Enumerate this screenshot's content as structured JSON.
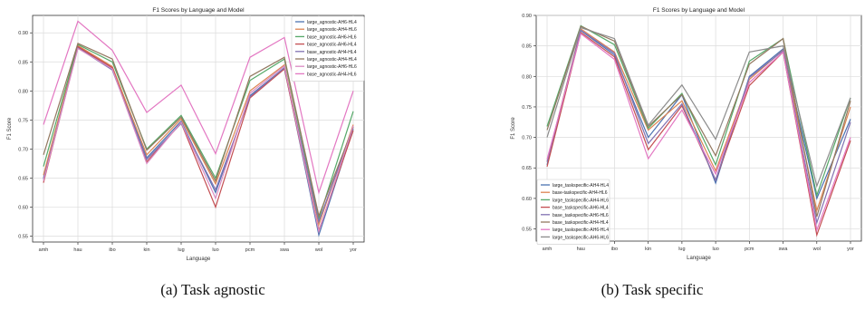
{
  "captions": [
    "(a)  Task agnostic",
    "(b)  Task specific"
  ],
  "chart_data": [
    {
      "type": "line",
      "title": "F1 Scores by Language and Model",
      "xlabel": "Language",
      "ylabel": "F1 Score",
      "categories": [
        "amh",
        "hau",
        "ibo",
        "kin",
        "lug",
        "luo",
        "pcm",
        "swa",
        "wol",
        "yor"
      ],
      "ylim": [
        0.54,
        0.93
      ],
      "yticks": [
        "0.55",
        "0.60",
        "0.65",
        "0.70",
        "0.75",
        "0.80",
        "0.85",
        "0.90"
      ],
      "grid": true,
      "legend_position": "top-right",
      "series": [
        {
          "name": "large_agnostic-AH6-HL4",
          "color": "#4c72b0",
          "values": [
            0.65,
            0.875,
            0.838,
            0.685,
            0.748,
            0.625,
            0.792,
            0.84,
            0.552,
            0.735
          ]
        },
        {
          "name": "large_agnostic-AH4-HL6",
          "color": "#dd8452",
          "values": [
            0.655,
            0.878,
            0.842,
            0.69,
            0.752,
            0.64,
            0.8,
            0.845,
            0.57,
            0.742
          ]
        },
        {
          "name": "base_agnostic-AH6-HL6",
          "color": "#55a868",
          "values": [
            0.67,
            0.88,
            0.85,
            0.7,
            0.758,
            0.65,
            0.818,
            0.855,
            0.58,
            0.765
          ]
        },
        {
          "name": "base_agnostic-AH6-HL4",
          "color": "#c44e52",
          "values": [
            0.642,
            0.876,
            0.84,
            0.678,
            0.745,
            0.6,
            0.788,
            0.838,
            0.56,
            0.732
          ]
        },
        {
          "name": "base_agnostic-AH4-HL4",
          "color": "#8172b2",
          "values": [
            0.648,
            0.874,
            0.836,
            0.682,
            0.744,
            0.63,
            0.79,
            0.84,
            0.575,
            0.738
          ]
        },
        {
          "name": "large_agnostic-AH4-HL4",
          "color": "#937860",
          "values": [
            0.69,
            0.882,
            0.855,
            0.698,
            0.755,
            0.645,
            0.825,
            0.858,
            0.585,
            0.738
          ]
        },
        {
          "name": "large_agnostic-AH6-HL6",
          "color": "#da8bc3",
          "values": [
            0.645,
            0.873,
            0.838,
            0.675,
            0.746,
            0.615,
            0.796,
            0.843,
            0.558,
            0.74
          ]
        },
        {
          "name": "base_agnostic-AH4-HL6",
          "color": "#e377c2",
          "values": [
            0.742,
            0.92,
            0.87,
            0.763,
            0.81,
            0.692,
            0.858,
            0.892,
            0.625,
            0.8
          ]
        }
      ]
    },
    {
      "type": "line",
      "title": "F1 Scores by Language and Model",
      "xlabel": "Language",
      "ylabel": "F1 Score",
      "categories": [
        "amh",
        "hau",
        "ibo",
        "kin",
        "lug",
        "luo",
        "pcm",
        "swa",
        "wol",
        "yor"
      ],
      "ylim": [
        0.53,
        0.9
      ],
      "yticks": [
        "0.55",
        "0.60",
        "0.65",
        "0.70",
        "0.75",
        "0.80",
        "0.85",
        "0.90"
      ],
      "grid": true,
      "legend_position": "bottom-left",
      "series": [
        {
          "name": "large_taskspecific-AH4-HL4",
          "color": "#4c72b0",
          "values": [
            0.655,
            0.875,
            0.835,
            0.7,
            0.77,
            0.625,
            0.8,
            0.845,
            0.6,
            0.73
          ]
        },
        {
          "name": "base-taskspecific-AH4-HL6",
          "color": "#dd8452",
          "values": [
            0.66,
            0.878,
            0.84,
            0.712,
            0.76,
            0.645,
            0.795,
            0.843,
            0.58,
            0.75
          ]
        },
        {
          "name": "large_taskspecific-AH4-HL6",
          "color": "#55a868",
          "values": [
            0.718,
            0.883,
            0.852,
            0.715,
            0.772,
            0.655,
            0.825,
            0.862,
            0.605,
            0.765
          ]
        },
        {
          "name": "base_taskspecific-AH6-HL4",
          "color": "#c44e52",
          "values": [
            0.652,
            0.872,
            0.832,
            0.68,
            0.752,
            0.63,
            0.785,
            0.84,
            0.54,
            0.695
          ]
        },
        {
          "name": "base_taskspecific-AH6-HL6",
          "color": "#8172b2",
          "values": [
            0.66,
            0.876,
            0.838,
            0.69,
            0.755,
            0.63,
            0.798,
            0.842,
            0.56,
            0.725
          ]
        },
        {
          "name": "base_taskspecific-AH4-HL4",
          "color": "#937860",
          "values": [
            0.712,
            0.882,
            0.858,
            0.718,
            0.77,
            0.67,
            0.82,
            0.862,
            0.57,
            0.76
          ]
        },
        {
          "name": "large_taskspecific-AH6-HL4",
          "color": "#e377c2",
          "values": [
            0.664,
            0.87,
            0.828,
            0.665,
            0.745,
            0.64,
            0.79,
            0.84,
            0.548,
            0.7
          ]
        },
        {
          "name": "large_taskspecific-AH6-HL6",
          "color": "#8c8c8c",
          "values": [
            0.7,
            0.88,
            0.862,
            0.72,
            0.786,
            0.697,
            0.84,
            0.85,
            0.62,
            0.765
          ]
        }
      ]
    }
  ]
}
